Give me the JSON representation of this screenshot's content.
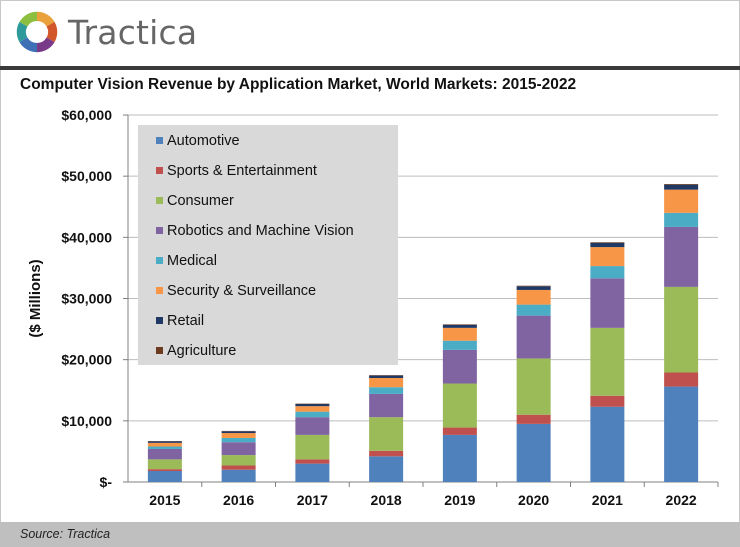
{
  "brand": {
    "name": "Tractica"
  },
  "source": "Source: Tractica",
  "chart_data": {
    "type": "bar",
    "stacked": true,
    "title": "Computer Vision Revenue by Application Market, World Markets: 2015-2022",
    "xlabel": "",
    "ylabel": "($ Millions)",
    "ylim": [
      0,
      60000
    ],
    "yticks": [
      0,
      10000,
      20000,
      30000,
      40000,
      50000,
      60000
    ],
    "ytick_labels": [
      "$-",
      "$10,000",
      "$20,000",
      "$30,000",
      "$40,000",
      "$50,000",
      "$60,000"
    ],
    "grid": true,
    "legend_position": "top-left",
    "categories": [
      "2015",
      "2016",
      "2017",
      "2018",
      "2019",
      "2020",
      "2021",
      "2022"
    ],
    "series": [
      {
        "name": "Automotive",
        "color": "#4f81bd",
        "values": [
          1800,
          2000,
          3000,
          4200,
          7700,
          9500,
          12300,
          15600
        ]
      },
      {
        "name": "Sports & Entertainment",
        "color": "#c0504d",
        "values": [
          300,
          700,
          700,
          900,
          1200,
          1500,
          1800,
          2300
        ]
      },
      {
        "name": "Consumer",
        "color": "#9bbb59",
        "values": [
          1600,
          1700,
          4000,
          5500,
          7200,
          9200,
          11100,
          14000
        ]
      },
      {
        "name": "Robotics and Machine Vision",
        "color": "#8064a2",
        "values": [
          1700,
          2100,
          2900,
          3800,
          5500,
          7000,
          8100,
          9800
        ]
      },
      {
        "name": "Medical",
        "color": "#4bacc6",
        "values": [
          400,
          700,
          900,
          1100,
          1500,
          1800,
          2000,
          2300
        ]
      },
      {
        "name": "Security & Surveillance",
        "color": "#f79646",
        "values": [
          600,
          800,
          900,
          1500,
          2100,
          2400,
          3100,
          3800
        ]
      },
      {
        "name": "Retail",
        "color": "#1f3864",
        "values": [
          250,
          300,
          350,
          400,
          500,
          600,
          700,
          800
        ]
      },
      {
        "name": "Agriculture",
        "color": "#6b3a1f",
        "values": [
          50,
          50,
          60,
          70,
          80,
          90,
          100,
          120
        ]
      }
    ]
  }
}
